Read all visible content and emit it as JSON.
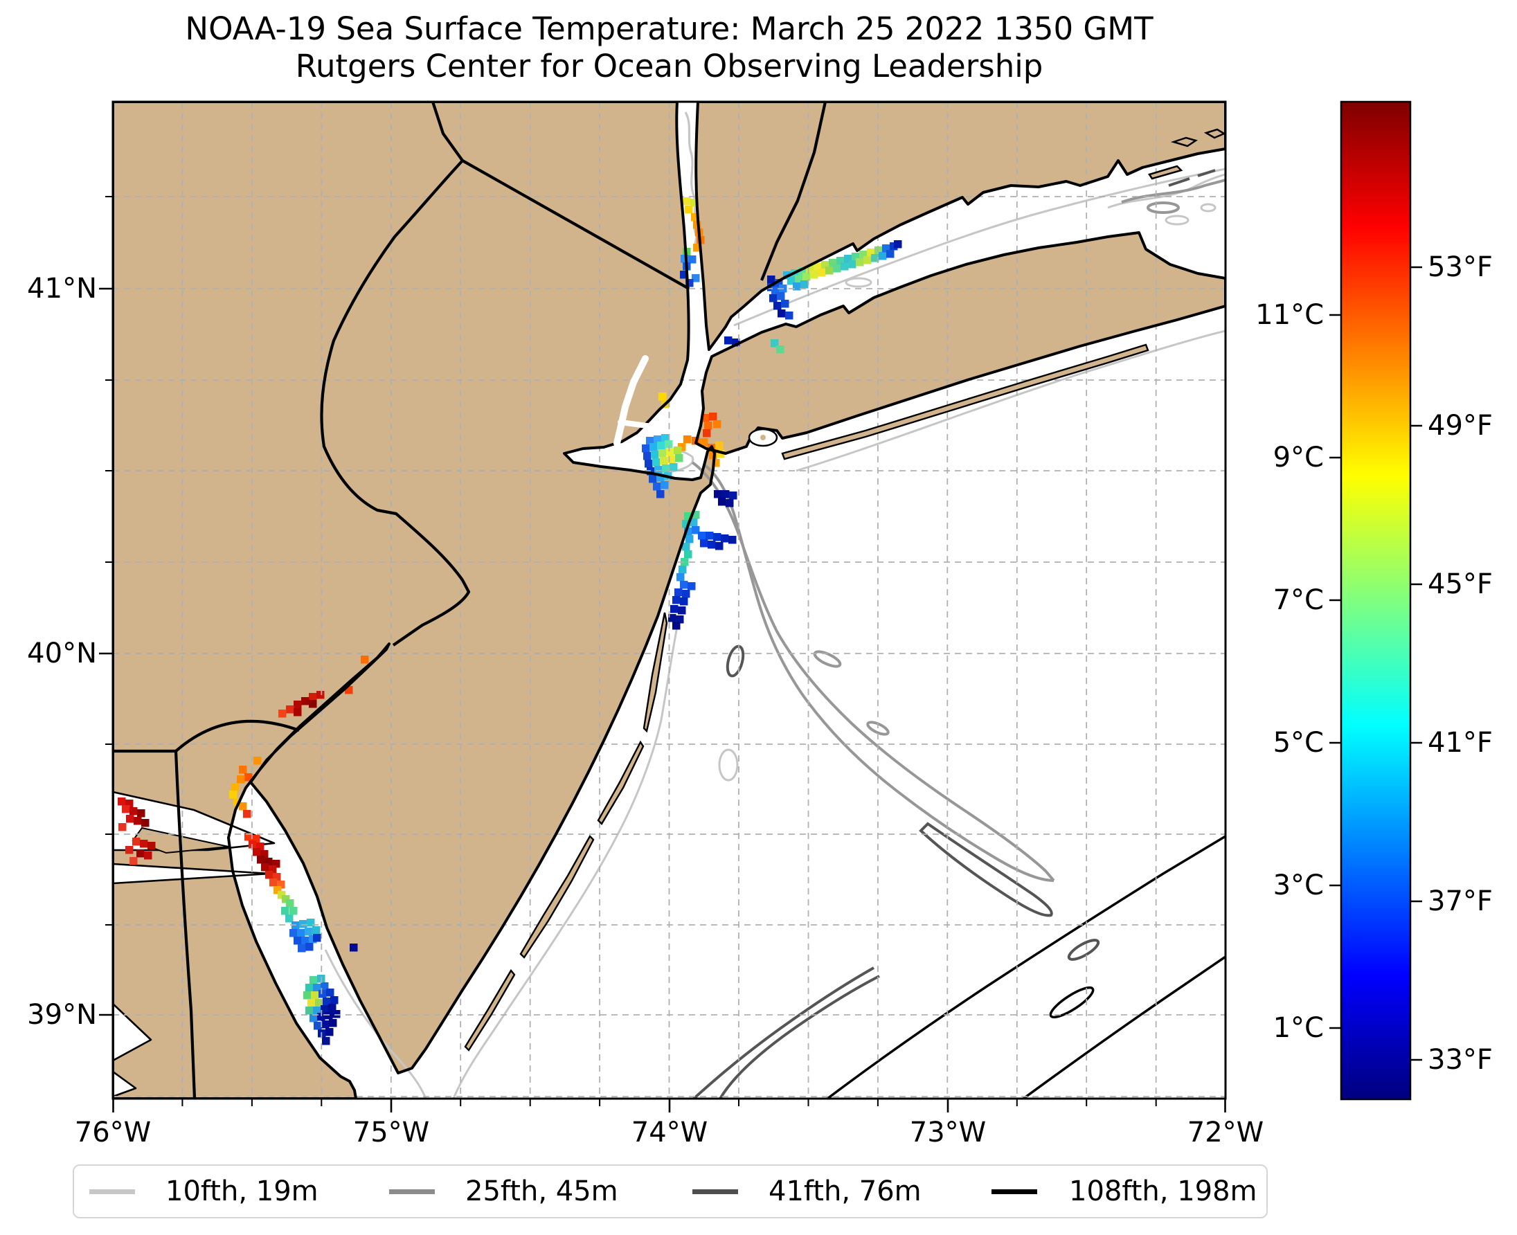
{
  "title": {
    "line1": "NOAA-19 Sea Surface Temperature: March 25 2022 1350 GMT",
    "line2": "Rutgers Center for Ocean Observing Leadership"
  },
  "map": {
    "land_color": "#d2b48c",
    "ocean_color": "#ffffff",
    "grid_color": "#b0b0b0",
    "x_ticks": [
      {
        "label": "76°W",
        "x": 163
      },
      {
        "label": "75°W",
        "x": 565
      },
      {
        "label": "74°W",
        "x": 967
      },
      {
        "label": "73°W",
        "x": 1369
      },
      {
        "label": "72°W",
        "x": 1770
      }
    ],
    "y_ticks": [
      {
        "label": "41°N",
        "y": 417
      },
      {
        "label": "40°N",
        "y": 944
      },
      {
        "label": "39°N",
        "y": 1466
      }
    ]
  },
  "colorbar": {
    "range_celsius": [
      0,
      14
    ],
    "gradient_jet": [
      "#00007f",
      "#0000ff",
      "#00ffff",
      "#ffff00",
      "#ff0000",
      "#7f0000"
    ],
    "celsius_ticks": [
      {
        "label": "11°C",
        "y": 455
      },
      {
        "label": "9°C",
        "y": 661
      },
      {
        "label": "7°C",
        "y": 867
      },
      {
        "label": "5°C",
        "y": 1073
      },
      {
        "label": "3°C",
        "y": 1279
      },
      {
        "label": "1°C",
        "y": 1485
      }
    ],
    "fahrenheit_ticks": [
      {
        "label": "53°F",
        "y": 386
      },
      {
        "label": "49°F",
        "y": 615
      },
      {
        "label": "45°F",
        "y": 844
      },
      {
        "label": "41°F",
        "y": 1073
      },
      {
        "label": "37°F",
        "y": 1302
      },
      {
        "label": "33°F",
        "y": 1531
      }
    ]
  },
  "legend": {
    "items": [
      {
        "label": "10fth, 19m",
        "color": "#c7c7c7",
        "x_line": 22,
        "x_label": 132
      },
      {
        "label": "25fth, 45m",
        "color": "#8c8c8c",
        "x_line": 455,
        "x_label": 565
      },
      {
        "label": "41fth, 76m",
        "color": "#4f4f4f",
        "x_line": 893,
        "x_label": 1003
      },
      {
        "label": "108fth, 198m",
        "color": "#000000",
        "x_line": 1325,
        "x_label": 1437
      }
    ]
  },
  "sst_pixels": [
    [
      986,
      285,
      "#f5e32a"
    ],
    [
      997,
      287,
      "#cfe832"
    ],
    [
      989,
      297,
      "#ffd400"
    ],
    [
      998,
      308,
      "#ffaa00"
    ],
    [
      1001,
      319,
      "#ff9400"
    ],
    [
      1004,
      330,
      "#ff8600"
    ],
    [
      1006,
      341,
      "#ff7300"
    ],
    [
      1001,
      352,
      "#ff9900"
    ],
    [
      986,
      358,
      "#55d24e"
    ],
    [
      983,
      368,
      "#2d8ff5"
    ],
    [
      994,
      369,
      "#1f77f0"
    ],
    [
      986,
      379,
      "#1059ea"
    ],
    [
      982,
      391,
      "#0a2bbf"
    ],
    [
      999,
      396,
      "#2b85f2"
    ],
    [
      990,
      403,
      "#123fd8"
    ],
    [
      951,
      567,
      "#ffd800"
    ],
    [
      955,
      578,
      "#f2ca1a"
    ],
    [
      1013,
      598,
      "#ff5a00"
    ],
    [
      1024,
      596,
      "#f63c00"
    ],
    [
      1017,
      609,
      "#ff6a00"
    ],
    [
      1030,
      607,
      "#ff7e00"
    ],
    [
      1015,
      620,
      "#ef3a08"
    ],
    [
      987,
      629,
      "#ff8400"
    ],
    [
      999,
      631,
      "#ff6c00"
    ],
    [
      1011,
      633,
      "#ff8a00"
    ],
    [
      979,
      640,
      "#ff9a00"
    ],
    [
      1022,
      641,
      "#ff7012"
    ],
    [
      1033,
      638,
      "#ffc21c"
    ],
    [
      1024,
      652,
      "#ff8c00"
    ],
    [
      1035,
      650,
      "#ffdd22"
    ],
    [
      1028,
      663,
      "#ffa600"
    ],
    [
      933,
      631,
      "#2e7ff2"
    ],
    [
      944,
      629,
      "#35a6f7"
    ],
    [
      955,
      627,
      "#2fc9e8"
    ],
    [
      927,
      642,
      "#1b5ae9"
    ],
    [
      938,
      640,
      "#27b3f0"
    ],
    [
      949,
      638,
      "#38dcd4"
    ],
    [
      960,
      636,
      "#63e8ac"
    ],
    [
      929,
      653,
      "#1747d9"
    ],
    [
      940,
      651,
      "#2cc3de"
    ],
    [
      951,
      649,
      "#abe956"
    ],
    [
      962,
      647,
      "#e9ef35"
    ],
    [
      973,
      645,
      "#b2e23f"
    ],
    [
      931,
      664,
      "#0f3fc9"
    ],
    [
      942,
      662,
      "#33cdd6"
    ],
    [
      953,
      660,
      "#d3e93d"
    ],
    [
      964,
      658,
      "#f2e92e"
    ],
    [
      975,
      656,
      "#6cdb74"
    ],
    [
      934,
      675,
      "#0936bf"
    ],
    [
      945,
      673,
      "#2cb2e8"
    ],
    [
      956,
      671,
      "#4bdcba"
    ],
    [
      967,
      669,
      "#3accd0"
    ],
    [
      937,
      686,
      "#1150d7"
    ],
    [
      948,
      684,
      "#2aa2f0"
    ],
    [
      959,
      682,
      "#33c2de"
    ],
    [
      943,
      697,
      "#1a62e8"
    ],
    [
      954,
      695,
      "#2492f6"
    ],
    [
      948,
      708,
      "#1246d2"
    ],
    [
      1031,
      708,
      "#00098e"
    ],
    [
      1042,
      708,
      "#000d96"
    ],
    [
      1053,
      710,
      "#0519a6"
    ],
    [
      1037,
      719,
      "#000784"
    ],
    [
      1048,
      721,
      "#010c8e"
    ],
    [
      988,
      740,
      "#3edc85"
    ],
    [
      999,
      738,
      "#4cd393"
    ],
    [
      985,
      751,
      "#2bc9bd"
    ],
    [
      996,
      749,
      "#33b8e0"
    ],
    [
      988,
      762,
      "#2397f0"
    ],
    [
      999,
      760,
      "#1b77f6"
    ],
    [
      1008,
      768,
      "#0f5ef8"
    ],
    [
      1019,
      768,
      "#0845e6"
    ],
    [
      1030,
      770,
      "#0231cf"
    ],
    [
      1041,
      772,
      "#0122b8"
    ],
    [
      1052,
      774,
      "#0119a8"
    ],
    [
      1011,
      779,
      "#0837e0"
    ],
    [
      1022,
      781,
      "#0127c6"
    ],
    [
      1033,
      783,
      "#0118ae"
    ],
    [
      990,
      773,
      "#25a8e8"
    ],
    [
      985,
      784,
      "#31bfd2"
    ],
    [
      988,
      795,
      "#2bd0ae"
    ],
    [
      983,
      806,
      "#3cd996"
    ],
    [
      980,
      817,
      "#2db8d8"
    ],
    [
      977,
      828,
      "#2590f0"
    ],
    [
      982,
      839,
      "#1a67f0"
    ],
    [
      993,
      841,
      "#1150e8"
    ],
    [
      974,
      850,
      "#1141d8"
    ],
    [
      985,
      852,
      "#0938d0"
    ],
    [
      971,
      861,
      "#0830c8"
    ],
    [
      982,
      863,
      "#0128c0"
    ],
    [
      968,
      874,
      "#001cb0"
    ],
    [
      979,
      876,
      "#0115a0"
    ],
    [
      965,
      887,
      "#000e92"
    ],
    [
      976,
      889,
      "#00119a"
    ],
    [
      971,
      898,
      "#000886"
    ],
    [
      521,
      947,
      "#ff6c00"
    ],
    [
      498,
      991,
      "#f63e08"
    ],
    [
      446,
      1001,
      "#d21b08"
    ],
    [
      457,
      998,
      "#c61106"
    ],
    [
      435,
      1007,
      "#9c0100"
    ],
    [
      446,
      1011,
      "#8a0000"
    ],
    [
      424,
      1012,
      "#b20802"
    ],
    [
      413,
      1019,
      "#e22b10"
    ],
    [
      424,
      1023,
      "#a80400"
    ],
    [
      402,
      1025,
      "#f2431a"
    ],
    [
      366,
      1093,
      "#ff9200"
    ],
    [
      345,
      1106,
      "#ff7300"
    ],
    [
      353,
      1117,
      "#ff5200"
    ],
    [
      342,
      1120,
      "#ff8a00"
    ],
    [
      334,
      1131,
      "#ffb300"
    ],
    [
      331,
      1142,
      "#ffd000"
    ],
    [
      337,
      1153,
      "#ffc100"
    ],
    [
      345,
      1159,
      "#ff9200"
    ],
    [
      351,
      1170,
      "#e93312"
    ],
    [
      353,
      1203,
      "#ff3208"
    ],
    [
      364,
      1206,
      "#f92a08"
    ],
    [
      359,
      1214,
      "#ea1c08"
    ],
    [
      370,
      1217,
      "#da1208"
    ],
    [
      365,
      1225,
      "#c20a06"
    ],
    [
      376,
      1228,
      "#ac0200"
    ],
    [
      371,
      1236,
      "#930000"
    ],
    [
      382,
      1239,
      "#880000"
    ],
    [
      393,
      1242,
      "#9a0300"
    ],
    [
      377,
      1247,
      "#ab0600"
    ],
    [
      388,
      1250,
      "#c21008"
    ],
    [
      383,
      1258,
      "#da2110"
    ],
    [
      394,
      1261,
      "#ea3318"
    ],
    [
      389,
      1269,
      "#f24b20"
    ],
    [
      400,
      1272,
      "#ff6324"
    ],
    [
      395,
      1280,
      "#ffa400"
    ],
    [
      401,
      1287,
      "#cde335"
    ],
    [
      407,
      1293,
      "#8edb52"
    ],
    [
      413,
      1299,
      "#65dc7c"
    ],
    [
      406,
      1310,
      "#43d2a4"
    ],
    [
      412,
      1321,
      "#3accc2"
    ],
    [
      418,
      1310,
      "#55da92"
    ],
    [
      421,
      1331,
      "#2599e8"
    ],
    [
      432,
      1329,
      "#33b1de"
    ],
    [
      443,
      1327,
      "#2cc2d6"
    ],
    [
      418,
      1342,
      "#1b69e8"
    ],
    [
      429,
      1342,
      "#2389f2"
    ],
    [
      440,
      1340,
      "#31a9e8"
    ],
    [
      451,
      1338,
      "#2bb9d8"
    ],
    [
      424,
      1353,
      "#1152e2"
    ],
    [
      435,
      1353,
      "#1a71f2"
    ],
    [
      446,
      1351,
      "#2b91f2"
    ],
    [
      430,
      1364,
      "#1a61e8"
    ],
    [
      441,
      1362,
      "#1149d8"
    ],
    [
      452,
      1349,
      "#0939ca"
    ],
    [
      505,
      1363,
      "#000d92"
    ],
    [
      447,
      1410,
      "#4cd793"
    ],
    [
      458,
      1408,
      "#33b9d2"
    ],
    [
      441,
      1421,
      "#31c9b1"
    ],
    [
      452,
      1421,
      "#2591e8"
    ],
    [
      463,
      1419,
      "#1b69e2"
    ],
    [
      438,
      1432,
      "#5cd67b"
    ],
    [
      449,
      1432,
      "#cce23b"
    ],
    [
      460,
      1430,
      "#1152da"
    ],
    [
      471,
      1428,
      "#0939ca"
    ],
    [
      444,
      1443,
      "#eae232"
    ],
    [
      455,
      1443,
      "#9cd94a"
    ],
    [
      466,
      1441,
      "#0831c2"
    ],
    [
      477,
      1439,
      "#0121b2"
    ],
    [
      441,
      1454,
      "#4ac694"
    ],
    [
      452,
      1454,
      "#2aa2e2"
    ],
    [
      463,
      1452,
      "#0119a2"
    ],
    [
      474,
      1450,
      "#000f9a"
    ],
    [
      447,
      1465,
      "#2389e2"
    ],
    [
      458,
      1463,
      "#0111a2"
    ],
    [
      469,
      1461,
      "#000a90"
    ],
    [
      480,
      1459,
      "#000b92"
    ],
    [
      453,
      1476,
      "#1052d2"
    ],
    [
      464,
      1474,
      "#000d9a"
    ],
    [
      475,
      1472,
      "#000784"
    ],
    [
      459,
      1487,
      "#011aaa"
    ],
    [
      470,
      1485,
      "#000a92"
    ],
    [
      465,
      1498,
      "#001192"
    ],
    [
      170,
      1152,
      "#da1210"
    ],
    [
      181,
      1155,
      "#c20a08"
    ],
    [
      176,
      1163,
      "#ea2318"
    ],
    [
      187,
      1166,
      "#ba0908"
    ],
    [
      198,
      1169,
      "#930000"
    ],
    [
      182,
      1177,
      "#d21110"
    ],
    [
      193,
      1180,
      "#ab0500"
    ],
    [
      171,
      1189,
      "#e93321"
    ],
    [
      204,
      1183,
      "#880000"
    ],
    [
      191,
      1210,
      "#e23119"
    ],
    [
      202,
      1213,
      "#ca1108"
    ],
    [
      213,
      1216,
      "#b20901"
    ],
    [
      181,
      1222,
      "#da2118"
    ],
    [
      197,
      1227,
      "#9a0100"
    ],
    [
      208,
      1230,
      "#c20a08"
    ],
    [
      187,
      1238,
      "#ea4129"
    ],
    [
      1108,
      398,
      "#0119a2"
    ],
    [
      1108,
      409,
      "#0939ca"
    ],
    [
      1119,
      403,
      "#1152da"
    ],
    [
      1114,
      414,
      "#1b69e8"
    ],
    [
      1125,
      411,
      "#2583f0"
    ],
    [
      1111,
      425,
      "#0831c2"
    ],
    [
      1122,
      422,
      "#1a61e2"
    ],
    [
      1117,
      436,
      "#0121b2"
    ],
    [
      1128,
      433,
      "#1149d2"
    ],
    [
      1123,
      447,
      "#000fa0"
    ],
    [
      1131,
      392,
      "#2bb3e2"
    ],
    [
      1142,
      389,
      "#3ad2c2"
    ],
    [
      1153,
      386,
      "#5ce0a2"
    ],
    [
      1137,
      400,
      "#33c9d2"
    ],
    [
      1148,
      397,
      "#6ce189"
    ],
    [
      1159,
      394,
      "#9ce95a"
    ],
    [
      1164,
      383,
      "#cdea39"
    ],
    [
      1175,
      380,
      "#eceb31"
    ],
    [
      1186,
      377,
      "#bae242"
    ],
    [
      1170,
      391,
      "#dcea31"
    ],
    [
      1181,
      388,
      "#f2e22a"
    ],
    [
      1192,
      385,
      "#9cd94a"
    ],
    [
      1197,
      374,
      "#6cda79"
    ],
    [
      1208,
      371,
      "#4cd2a2"
    ],
    [
      1203,
      382,
      "#5cd992"
    ],
    [
      1214,
      379,
      "#3acac9"
    ],
    [
      1145,
      408,
      "#2aa2e8"
    ],
    [
      1156,
      405,
      "#33b9d8"
    ],
    [
      1219,
      368,
      "#33c2d2"
    ],
    [
      1230,
      365,
      "#55d994"
    ],
    [
      1241,
      362,
      "#84e16a"
    ],
    [
      1225,
      376,
      "#3acac2"
    ],
    [
      1236,
      373,
      "#a4e252"
    ],
    [
      1247,
      370,
      "#c2e242"
    ],
    [
      1252,
      359,
      "#e2e932"
    ],
    [
      1263,
      356,
      "#84da6a"
    ],
    [
      1258,
      367,
      "#4cc9aa"
    ],
    [
      1269,
      364,
      "#2aa9e2"
    ],
    [
      1274,
      353,
      "#1b71e8"
    ],
    [
      1285,
      350,
      "#0939ca"
    ],
    [
      1280,
      361,
      "#1152da"
    ],
    [
      1291,
      347,
      "#0119aa"
    ],
    [
      1134,
      450,
      "#1141d2"
    ],
    [
      1046,
      486,
      "#0122b8"
    ],
    [
      1057,
      489,
      "#0119a8"
    ],
    [
      1113,
      490,
      "#3acac2"
    ],
    [
      1121,
      499,
      "#5cd992"
    ]
  ]
}
